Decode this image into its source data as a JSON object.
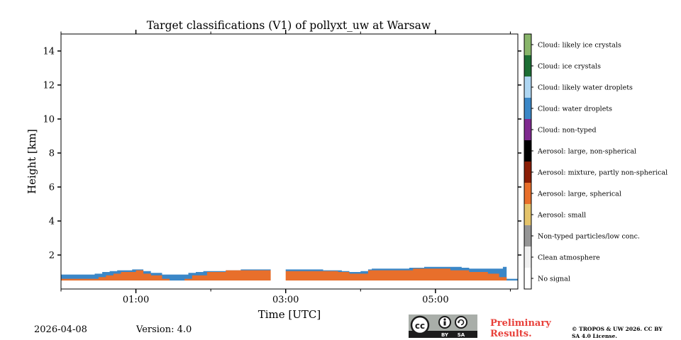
{
  "chart_data": {
    "type": "heatmap",
    "title": "Target classifications (V1) of pollyxt_uw at Warsaw",
    "xlabel": "Time [UTC]",
    "ylabel": "Height [km]",
    "xlim_hours": [
      0.0,
      6.1
    ],
    "ylim": [
      0.0,
      15.0
    ],
    "x_ticks": [
      {
        "hour": 1.0,
        "label": "01:00"
      },
      {
        "hour": 3.0,
        "label": "03:00"
      },
      {
        "hour": 5.0,
        "label": "05:00"
      }
    ],
    "x_minor_ticks_hours": [
      0.0,
      2.0,
      4.0,
      6.0
    ],
    "y_ticks": [
      2,
      4,
      6,
      8,
      10,
      12,
      14
    ],
    "y_tick_labels": [
      "2",
      "4",
      "6",
      "8",
      "10",
      "12",
      "14"
    ],
    "data_gap_hours": [
      2.8,
      3.0
    ],
    "colorbar": [
      {
        "label": "No signal",
        "color": "#ffffff"
      },
      {
        "label": "Clean atmosphere",
        "color": "#f0f0f0"
      },
      {
        "label": "Non-typed particles/low conc.",
        "color": "#969696"
      },
      {
        "label": "Aerosol: small",
        "color": "#e4c36b"
      },
      {
        "label": "Aerosol: large, spherical",
        "color": "#e86f2b"
      },
      {
        "label": "Aerosol: mixture, partly non-spherical",
        "color": "#8a1e06"
      },
      {
        "label": "Aerosol: large, non-spherical",
        "color": "#000000"
      },
      {
        "label": "Cloud: non-typed",
        "color": "#7f2a8f"
      },
      {
        "label": "Cloud: water droplets",
        "color": "#3b87c7"
      },
      {
        "label": "Cloud: likely water droplets",
        "color": "#aed6f2"
      },
      {
        "label": "Cloud: ice crystals",
        "color": "#1d6e34"
      },
      {
        "label": "Cloud: likely ice crystals",
        "color": "#88b56a"
      }
    ],
    "layers": {
      "aerosol_large_spherical_top_km": [
        [
          0.0,
          0.6
        ],
        [
          0.5,
          0.6
        ],
        [
          0.5,
          0.7
        ],
        [
          0.6,
          0.7
        ],
        [
          0.6,
          0.8
        ],
        [
          0.7,
          0.8
        ],
        [
          0.7,
          0.9
        ],
        [
          0.8,
          0.9
        ],
        [
          0.8,
          1.0
        ],
        [
          1.0,
          1.0
        ],
        [
          1.0,
          1.1
        ],
        [
          1.1,
          1.1
        ],
        [
          1.1,
          0.9
        ],
        [
          1.2,
          0.9
        ],
        [
          1.2,
          0.8
        ],
        [
          1.35,
          0.8
        ],
        [
          1.35,
          0.6
        ],
        [
          1.45,
          0.6
        ],
        [
          1.45,
          0.5
        ],
        [
          1.65,
          0.5
        ],
        [
          1.65,
          0.6
        ],
        [
          1.75,
          0.6
        ],
        [
          1.75,
          0.8
        ],
        [
          1.95,
          0.8
        ],
        [
          1.95,
          1.0
        ],
        [
          2.2,
          1.0
        ],
        [
          2.2,
          1.1
        ],
        [
          2.8,
          1.1
        ],
        [
          3.0,
          1.1
        ],
        [
          3.0,
          1.05
        ],
        [
          3.7,
          1.05
        ],
        [
          3.7,
          1.0
        ],
        [
          3.85,
          1.0
        ],
        [
          3.85,
          0.9
        ],
        [
          4.1,
          0.9
        ],
        [
          4.1,
          1.1
        ],
        [
          4.7,
          1.1
        ],
        [
          4.7,
          1.2
        ],
        [
          5.2,
          1.2
        ],
        [
          5.2,
          1.1
        ],
        [
          5.45,
          1.1
        ],
        [
          5.45,
          1.0
        ],
        [
          5.7,
          1.0
        ],
        [
          5.7,
          0.9
        ],
        [
          5.85,
          0.9
        ],
        [
          5.85,
          0.7
        ],
        [
          5.95,
          0.7
        ],
        [
          5.95,
          0.5
        ],
        [
          6.1,
          0.5
        ]
      ],
      "cloud_water_top_km": [
        [
          0.0,
          0.85
        ],
        [
          0.45,
          0.85
        ],
        [
          0.45,
          0.9
        ],
        [
          0.55,
          0.9
        ],
        [
          0.55,
          1.0
        ],
        [
          0.65,
          1.0
        ],
        [
          0.65,
          1.05
        ],
        [
          0.75,
          1.05
        ],
        [
          0.75,
          1.1
        ],
        [
          0.95,
          1.1
        ],
        [
          0.95,
          1.15
        ],
        [
          1.1,
          1.15
        ],
        [
          1.1,
          1.05
        ],
        [
          1.2,
          1.05
        ],
        [
          1.2,
          0.95
        ],
        [
          1.35,
          0.95
        ],
        [
          1.35,
          0.85
        ],
        [
          1.7,
          0.85
        ],
        [
          1.7,
          0.95
        ],
        [
          1.8,
          0.95
        ],
        [
          1.8,
          1.0
        ],
        [
          1.9,
          1.0
        ],
        [
          1.9,
          1.05
        ],
        [
          2.2,
          1.05
        ],
        [
          2.2,
          1.1
        ],
        [
          2.4,
          1.1
        ],
        [
          2.4,
          1.15
        ],
        [
          2.8,
          1.15
        ],
        [
          3.0,
          1.15
        ],
        [
          3.0,
          1.15
        ],
        [
          3.5,
          1.15
        ],
        [
          3.5,
          1.1
        ],
        [
          3.75,
          1.1
        ],
        [
          3.75,
          1.05
        ],
        [
          3.85,
          1.05
        ],
        [
          3.85,
          1.0
        ],
        [
          4.0,
          1.0
        ],
        [
          4.0,
          1.05
        ],
        [
          4.1,
          1.05
        ],
        [
          4.1,
          1.15
        ],
        [
          4.15,
          1.15
        ],
        [
          4.15,
          1.2
        ],
        [
          4.65,
          1.2
        ],
        [
          4.65,
          1.25
        ],
        [
          4.85,
          1.25
        ],
        [
          4.85,
          1.3
        ],
        [
          5.35,
          1.3
        ],
        [
          5.35,
          1.25
        ],
        [
          5.45,
          1.25
        ],
        [
          5.45,
          1.2
        ],
        [
          5.9,
          1.2
        ],
        [
          5.9,
          1.3
        ],
        [
          5.95,
          1.3
        ],
        [
          5.95,
          0.6
        ],
        [
          6.1,
          0.6
        ]
      ]
    }
  },
  "footer": {
    "date": "2026-04-08",
    "version": "Version: 4.0",
    "preliminary": "Preliminary Results.",
    "copyright": "© TROPOS & UW 2026. CC BY SA 4.0 License.",
    "license_badge": {
      "cc": "cc",
      "by": "BY",
      "sa": "SA",
      "icon": "creative-commons-badge-icon"
    }
  }
}
